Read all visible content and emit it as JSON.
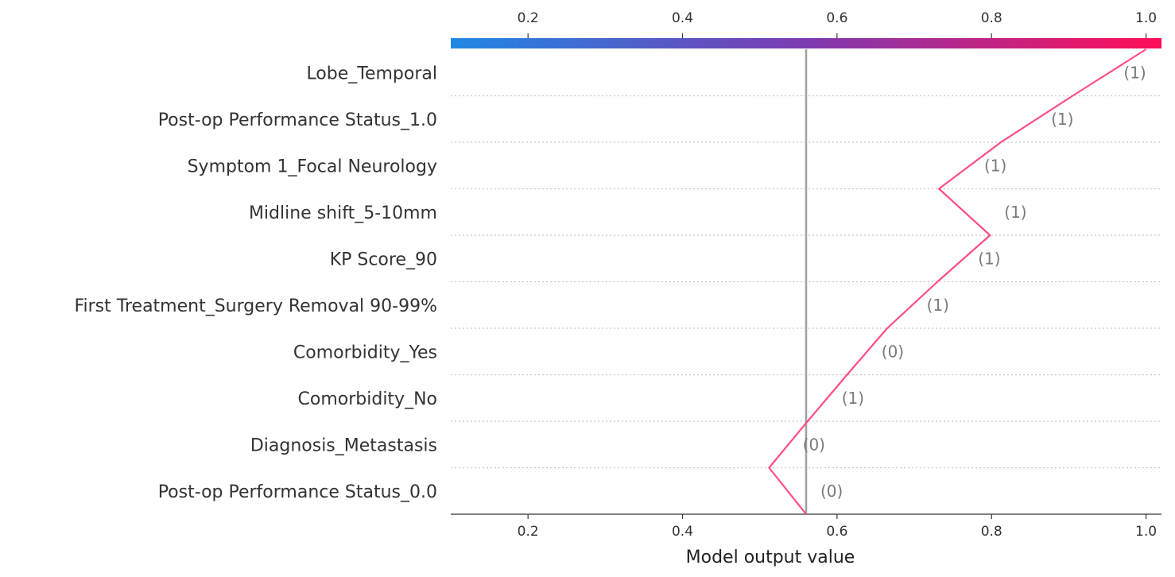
{
  "chart_data": {
    "type": "line",
    "subtype": "decision-plot",
    "xlabel": "Model output value",
    "xlim": [
      0.1,
      1.02
    ],
    "xticks": [
      0.2,
      0.4,
      0.6,
      0.8,
      1.0
    ],
    "xtick_labels": [
      "0.2",
      "0.4",
      "0.6",
      "0.8",
      "1.0"
    ],
    "base_value": 0.56,
    "colorbar": {
      "range": [
        0.1,
        1.02
      ],
      "from": "#1e88e5",
      "mid": "#7c3ab0",
      "to": "#ff0d57"
    },
    "line_color": "#ff4d8a",
    "baseline_color": "#a0a0a0",
    "features": [
      {
        "name": "Lobe_Temporal",
        "value_label": "(1)",
        "output": 1.0
      },
      {
        "name": "Post-op Performance Status_1.0",
        "value_label": "(1)",
        "output": 0.905
      },
      {
        "name": "Symptom 1_Focal Neurology",
        "value_label": "(1)",
        "output": 0.812
      },
      {
        "name": "Midline shift_5-10mm",
        "value_label": "(1)",
        "output": 0.732
      },
      {
        "name": "KP Score_90",
        "value_label": "(1)",
        "output": 0.798
      },
      {
        "name": "First Treatment_Surgery Removal 90-99%",
        "value_label": "(1)",
        "output": 0.73
      },
      {
        "name": "Comorbidity_Yes",
        "value_label": "(0)",
        "output": 0.665
      },
      {
        "name": "Comorbidity_No",
        "value_label": "(1)",
        "output": 0.613
      },
      {
        "name": "Diagnosis_Metastasis",
        "value_label": "(0)",
        "output": 0.562
      },
      {
        "name": "Post-op Performance Status_0.0",
        "value_label": "(0)",
        "output": 0.512
      }
    ]
  }
}
